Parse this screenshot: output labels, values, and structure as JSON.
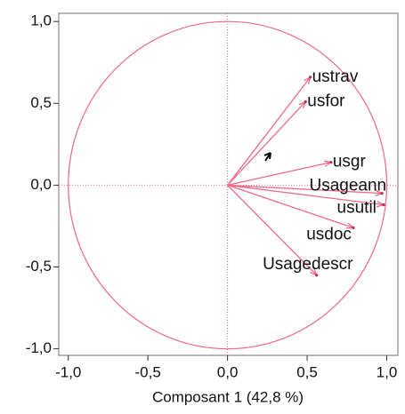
{
  "chart_data": {
    "type": "biplot",
    "xlabel": "Composant 1  (42,8 %)",
    "xlim": [
      -1.06,
      1.07
    ],
    "ylim": [
      -1.04,
      1.05
    ],
    "xticks": [
      {
        "value": -1,
        "label": "-1,0"
      },
      {
        "value": -0.5,
        "label": "-0,5"
      },
      {
        "value": 0,
        "label": "0,0"
      },
      {
        "value": 0.5,
        "label": "0,5"
      },
      {
        "value": 1,
        "label": "1,0"
      }
    ],
    "yticks": [
      {
        "value": -1,
        "label": "-1,0"
      },
      {
        "value": -0.5,
        "label": "-0,5"
      },
      {
        "value": 0,
        "label": "0,0"
      },
      {
        "value": 0.5,
        "label": "0,5"
      },
      {
        "value": 1,
        "label": "1,0"
      }
    ],
    "color": "#ee6a88",
    "points": [
      {
        "name": "ustrav",
        "x": 0.52,
        "y": 0.66
      },
      {
        "name": "usfor",
        "x": 0.49,
        "y": 0.51
      },
      {
        "name": "usgr",
        "x": 0.65,
        "y": 0.14
      },
      {
        "name": "Usageann",
        "x": 0.97,
        "y": -0.05
      },
      {
        "name": "usutil",
        "x": 0.98,
        "y": -0.12
      },
      {
        "name": "usdoc",
        "x": 0.79,
        "y": -0.26
      },
      {
        "name": "Usagedescr",
        "x": 0.56,
        "y": -0.55
      }
    ]
  }
}
